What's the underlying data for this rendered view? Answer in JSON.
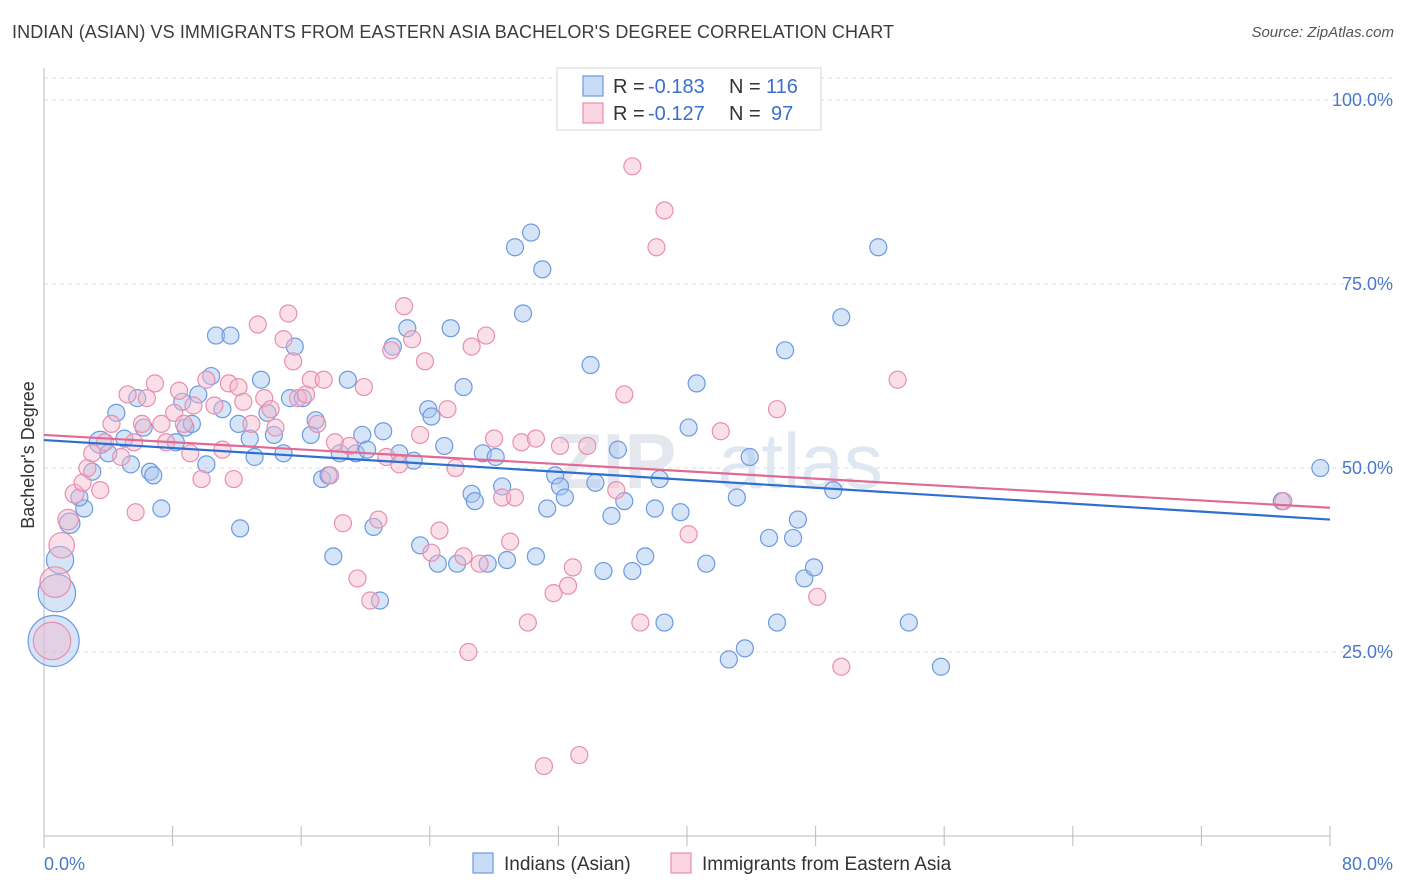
{
  "title": "INDIAN (ASIAN) VS IMMIGRANTS FROM EASTERN ASIA BACHELOR'S DEGREE CORRELATION CHART",
  "source": "Source: ZipAtlas.com",
  "watermark": {
    "zip": "ZIP",
    "atlas": "atlas"
  },
  "colors": {
    "blue": "#6c9ae0",
    "blue_fill": "rgba(164,196,240,0.45)",
    "blue_line": "#2f6fd0",
    "pink": "#e88fae",
    "pink_fill": "rgba(246,184,204,0.45)",
    "pink_line": "#e06a94"
  },
  "legend": {
    "row1": {
      "r_label": "R =",
      "r_value": "-0.183",
      "n_label": "N =",
      "n_value": "116"
    },
    "row2": {
      "r_label": "R =",
      "r_value": "-0.127",
      "n_label": "N =",
      "n_value": "97"
    }
  },
  "chart_data": {
    "type": "scatter",
    "title": "INDIAN (ASIAN) VS IMMIGRANTS FROM EASTERN ASIA BACHELOR'S DEGREE CORRELATION CHART",
    "xlabel": "",
    "ylabel": "Bachelor's Degree",
    "xlim": [
      0,
      80
    ],
    "ylim": [
      0,
      103
    ],
    "x_tick_labels": [
      "0.0%",
      "80.0%"
    ],
    "y_ticks": [
      25,
      50,
      75,
      100
    ],
    "y_tick_labels": [
      "25.0%",
      "50.0%",
      "75.0%",
      "100.0%"
    ],
    "grid": true,
    "series": [
      {
        "name": "Indians (Asian)",
        "color": "#6c9ae0",
        "trend": {
          "x": [
            0,
            80
          ],
          "y": [
            53.8,
            43.0
          ]
        },
        "points": [
          [
            0.6,
            26.5,
            3
          ],
          [
            0.8,
            33,
            2.2
          ],
          [
            1.0,
            37.5,
            1.6
          ],
          [
            1.6,
            42.5,
            1.2
          ],
          [
            2.5,
            44.5,
            1
          ],
          [
            2.2,
            46,
            1
          ],
          [
            3.0,
            49.5,
            1
          ],
          [
            3.5,
            53.5,
            1.3
          ],
          [
            4.0,
            52,
            1
          ],
          [
            4.5,
            57.5,
            1
          ],
          [
            5.0,
            54,
            1
          ],
          [
            5.4,
            50.5,
            1
          ],
          [
            5.8,
            59.5,
            1
          ],
          [
            6.2,
            55.5,
            1
          ],
          [
            6.6,
            49.5,
            1
          ],
          [
            6.8,
            49,
            1
          ],
          [
            7.3,
            44.5,
            1
          ],
          [
            8.2,
            53.5,
            1
          ],
          [
            8.6,
            59,
            1
          ],
          [
            8.8,
            55.5,
            1
          ],
          [
            9.2,
            56,
            1
          ],
          [
            9.6,
            60,
            1
          ],
          [
            10.1,
            50.5,
            1
          ],
          [
            10.4,
            62.5,
            1
          ],
          [
            10.7,
            68,
            1
          ],
          [
            11.1,
            58,
            1
          ],
          [
            11.6,
            68,
            1
          ],
          [
            12.1,
            56,
            1
          ],
          [
            12.2,
            41.8,
            1
          ],
          [
            12.8,
            54,
            1
          ],
          [
            13.1,
            51.5,
            1
          ],
          [
            13.5,
            62,
            1
          ],
          [
            13.9,
            57.5,
            1
          ],
          [
            14.3,
            54.5,
            1
          ],
          [
            14.9,
            52,
            1
          ],
          [
            15.3,
            59.5,
            1
          ],
          [
            15.6,
            66.5,
            1
          ],
          [
            16.1,
            59.5,
            1
          ],
          [
            16.6,
            54.5,
            1
          ],
          [
            16.9,
            56.5,
            1
          ],
          [
            17.3,
            48.5,
            1
          ],
          [
            17.7,
            49,
            1
          ],
          [
            18.0,
            38,
            1
          ],
          [
            18.4,
            52,
            1
          ],
          [
            18.9,
            62,
            1
          ],
          [
            19.4,
            52,
            1
          ],
          [
            19.8,
            54.5,
            1
          ],
          [
            20.1,
            52.5,
            1
          ],
          [
            20.5,
            42,
            1
          ],
          [
            20.9,
            32,
            1
          ],
          [
            21.1,
            55,
            1
          ],
          [
            21.7,
            66.5,
            1
          ],
          [
            22.1,
            52,
            1
          ],
          [
            22.6,
            69,
            1
          ],
          [
            23.0,
            51,
            1
          ],
          [
            23.4,
            39.5,
            1
          ],
          [
            23.9,
            58,
            1
          ],
          [
            24.1,
            57,
            1
          ],
          [
            24.5,
            37,
            1
          ],
          [
            24.9,
            53,
            1
          ],
          [
            25.3,
            69,
            1
          ],
          [
            25.7,
            37,
            1
          ],
          [
            26.1,
            61,
            1
          ],
          [
            26.6,
            46.5,
            1
          ],
          [
            26.8,
            45.5,
            1
          ],
          [
            27.3,
            52,
            1
          ],
          [
            27.6,
            37,
            1
          ],
          [
            28.1,
            51.5,
            1
          ],
          [
            28.5,
            47.5,
            1
          ],
          [
            28.8,
            37.5,
            1
          ],
          [
            29.3,
            80,
            1
          ],
          [
            29.8,
            71,
            1
          ],
          [
            30.3,
            82,
            1
          ],
          [
            30.6,
            38,
            1
          ],
          [
            31.0,
            77,
            1
          ],
          [
            31.3,
            44.5,
            1
          ],
          [
            31.8,
            49,
            1
          ],
          [
            32.1,
            47.5,
            1
          ],
          [
            32.4,
            46,
            1
          ],
          [
            34.0,
            64,
            1
          ],
          [
            34.3,
            48,
            1
          ],
          [
            34.8,
            36,
            1
          ],
          [
            35.3,
            43.5,
            1
          ],
          [
            35.7,
            52.5,
            1
          ],
          [
            36.1,
            45.5,
            1
          ],
          [
            36.6,
            36,
            1
          ],
          [
            37.4,
            38,
            1
          ],
          [
            38.0,
            44.5,
            1
          ],
          [
            38.3,
            48.5,
            1
          ],
          [
            38.6,
            29,
            1
          ],
          [
            39.6,
            44,
            1
          ],
          [
            40.1,
            55.5,
            1
          ],
          [
            40.6,
            61.5,
            1
          ],
          [
            41.2,
            37,
            1
          ],
          [
            42.6,
            24,
            1
          ],
          [
            43.1,
            46,
            1
          ],
          [
            43.6,
            25.5,
            1
          ],
          [
            43.9,
            51.5,
            1
          ],
          [
            45.1,
            40.5,
            1
          ],
          [
            45.6,
            29,
            1
          ],
          [
            46.1,
            66,
            1
          ],
          [
            46.6,
            40.5,
            1
          ],
          [
            46.9,
            43,
            1
          ],
          [
            47.3,
            35,
            1
          ],
          [
            47.9,
            36.5,
            1
          ],
          [
            49.1,
            47,
            1
          ],
          [
            49.6,
            70.5,
            1
          ],
          [
            51.9,
            80,
            1
          ],
          [
            53.8,
            29,
            1
          ],
          [
            55.8,
            23,
            1
          ],
          [
            77.0,
            45.5,
            1
          ],
          [
            79.4,
            50,
            1
          ]
        ]
      },
      {
        "name": "Immigrants from Eastern Asia",
        "color": "#e88fae",
        "trend": {
          "x": [
            0,
            80
          ],
          "y": [
            54.5,
            44.6
          ]
        },
        "points": [
          [
            0.5,
            26.5,
            2.2
          ],
          [
            0.7,
            34.5,
            1.8
          ],
          [
            1.1,
            39.5,
            1.5
          ],
          [
            1.5,
            43,
            1.2
          ],
          [
            1.9,
            46.5,
            1.1
          ],
          [
            2.4,
            48,
            1
          ],
          [
            2.7,
            50,
            1
          ],
          [
            3.0,
            52,
            1
          ],
          [
            3.5,
            47,
            1
          ],
          [
            3.8,
            53.5,
            1
          ],
          [
            4.2,
            56,
            1
          ],
          [
            4.8,
            51.5,
            1
          ],
          [
            5.2,
            60,
            1
          ],
          [
            5.6,
            53.5,
            1
          ],
          [
            5.7,
            44,
            1
          ],
          [
            6.1,
            56,
            1
          ],
          [
            6.4,
            59.5,
            1
          ],
          [
            6.9,
            61.5,
            1
          ],
          [
            7.3,
            56,
            1
          ],
          [
            7.6,
            53.5,
            1
          ],
          [
            8.1,
            57.5,
            1
          ],
          [
            8.4,
            60.5,
            1
          ],
          [
            8.7,
            56,
            1
          ],
          [
            9.1,
            52,
            1
          ],
          [
            9.3,
            58.5,
            1
          ],
          [
            9.8,
            48.5,
            1
          ],
          [
            10.1,
            62,
            1
          ],
          [
            10.6,
            58.5,
            1
          ],
          [
            11.1,
            52.5,
            1
          ],
          [
            11.5,
            61.5,
            1
          ],
          [
            11.8,
            48.5,
            1
          ],
          [
            12.1,
            61,
            1
          ],
          [
            12.4,
            59,
            1
          ],
          [
            12.9,
            56,
            1
          ],
          [
            13.3,
            69.5,
            1
          ],
          [
            13.7,
            59.5,
            1
          ],
          [
            14.1,
            58,
            1
          ],
          [
            14.4,
            55.5,
            1
          ],
          [
            14.9,
            67.5,
            1
          ],
          [
            15.2,
            71,
            1
          ],
          [
            15.5,
            64.5,
            1
          ],
          [
            15.8,
            59.5,
            1
          ],
          [
            16.3,
            60,
            1
          ],
          [
            16.6,
            62,
            1
          ],
          [
            17.0,
            56,
            1
          ],
          [
            17.4,
            62,
            1
          ],
          [
            17.8,
            49,
            1
          ],
          [
            18.1,
            53.5,
            1
          ],
          [
            18.6,
            42.5,
            1
          ],
          [
            19.0,
            53,
            1
          ],
          [
            19.5,
            35,
            1
          ],
          [
            19.9,
            61,
            1
          ],
          [
            20.3,
            32,
            1
          ],
          [
            20.8,
            43,
            1
          ],
          [
            21.3,
            51.5,
            1
          ],
          [
            21.6,
            66,
            1
          ],
          [
            22.1,
            50.5,
            1
          ],
          [
            22.4,
            72,
            1
          ],
          [
            22.9,
            67.5,
            1
          ],
          [
            23.4,
            54.5,
            1
          ],
          [
            23.7,
            64.5,
            1
          ],
          [
            24.1,
            38.5,
            1
          ],
          [
            24.6,
            41.5,
            1
          ],
          [
            25.1,
            58,
            1
          ],
          [
            25.6,
            50,
            1
          ],
          [
            26.1,
            38,
            1
          ],
          [
            26.4,
            25,
            1
          ],
          [
            26.6,
            66.5,
            1
          ],
          [
            27.1,
            37,
            1
          ],
          [
            27.5,
            68,
            1
          ],
          [
            28.0,
            54,
            1
          ],
          [
            28.5,
            46,
            1
          ],
          [
            29.0,
            40,
            1
          ],
          [
            29.3,
            46,
            1
          ],
          [
            29.7,
            53.5,
            1
          ],
          [
            30.1,
            29,
            1
          ],
          [
            30.6,
            54,
            1
          ],
          [
            31.1,
            9.5,
            1
          ],
          [
            31.7,
            33,
            1
          ],
          [
            32.1,
            53,
            1
          ],
          [
            32.6,
            34,
            1
          ],
          [
            32.9,
            36.5,
            1
          ],
          [
            33.3,
            11,
            1
          ],
          [
            33.8,
            53,
            1
          ],
          [
            35.6,
            47,
            1
          ],
          [
            36.1,
            60,
            1
          ],
          [
            36.6,
            91,
            1
          ],
          [
            37.1,
            29,
            1
          ],
          [
            38.1,
            80,
            1
          ],
          [
            38.6,
            85,
            1
          ],
          [
            40.1,
            41,
            1
          ],
          [
            42.1,
            55,
            1
          ],
          [
            45.6,
            58,
            1
          ],
          [
            48.1,
            32.5,
            1
          ],
          [
            49.6,
            23,
            1
          ],
          [
            53.1,
            62,
            1
          ],
          [
            77.1,
            45.5,
            1
          ]
        ]
      }
    ]
  }
}
